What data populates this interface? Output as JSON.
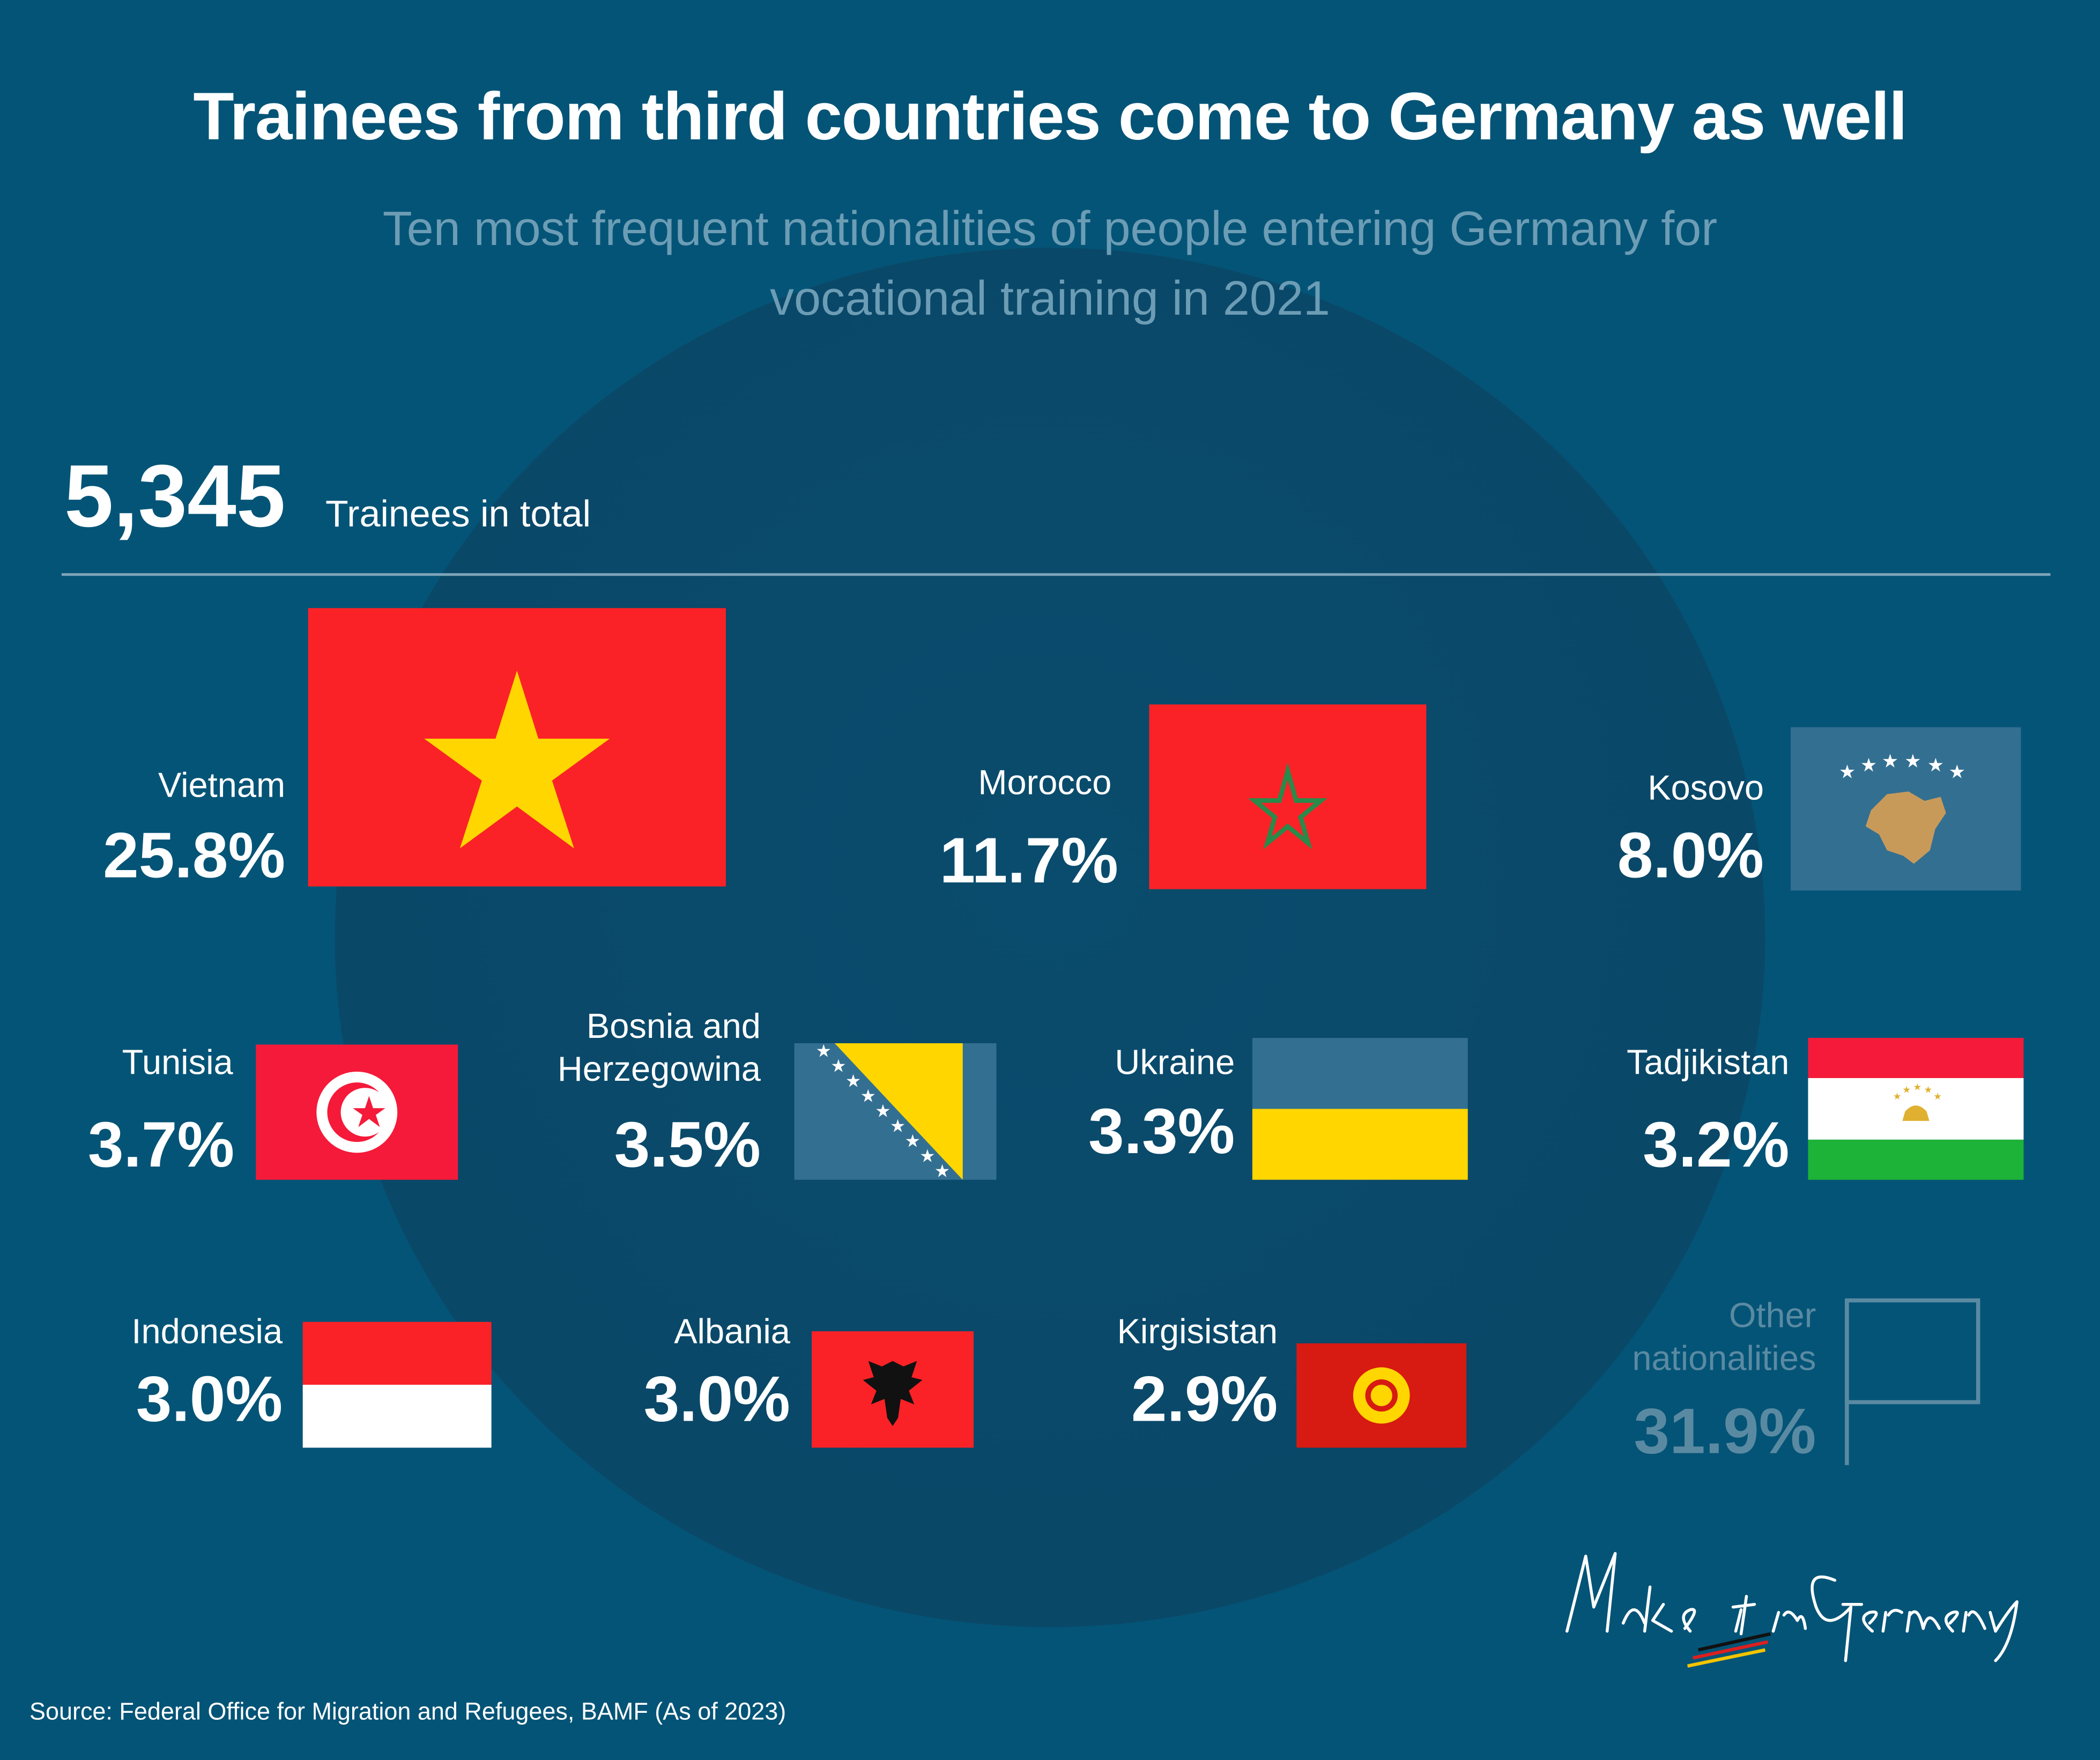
{
  "title": "Trainees from third countries come to Germany as well",
  "subtitle_line1": "Ten most frequent nationalities of people entering Germany for",
  "subtitle_line2": "vocational training in 2021",
  "total": {
    "value": "5,345",
    "label": "Trainees in total"
  },
  "source": "Source: Federal Office for Migration and Refugees, BAMF (As of 2023)",
  "logo_text": "Make it in Germany",
  "colors": {
    "background": "#045477",
    "subtitle": "#6c9db5",
    "muted": "#5a8aa2",
    "red": "#fa2227",
    "yellow": "#ffd600",
    "blue_flag": "#336f91",
    "green": "#1db338"
  },
  "chart_data": {
    "type": "proportional-area",
    "unit": "%",
    "total": 5345,
    "categories": [
      "Vietnam",
      "Morocco",
      "Kosovo",
      "Tunisia",
      "Bosnia and Herzegowina",
      "Ukraine",
      "Tadjikistan",
      "Indonesia",
      "Albania",
      "Kirgisistan",
      "Other nationalities"
    ],
    "values": [
      25.8,
      11.7,
      8.0,
      3.7,
      3.5,
      3.3,
      3.2,
      3.0,
      3.0,
      2.9,
      31.9
    ],
    "labels": [
      "25.8%",
      "11.7%",
      "8.0%",
      "3.7%",
      "3.5%",
      "3.3%",
      "3.2%",
      "3.0%",
      "3.0%",
      "2.9%",
      "31.9%"
    ],
    "display_names": [
      "Vietnam",
      "Morocco",
      "Kosovo",
      "Tunisia",
      "Bosnia and",
      "Herzegowina",
      "Ukraine",
      "Tadjikistan",
      "Indonesia",
      "Albania",
      "Kirgisistan",
      "Other",
      "nationalities"
    ],
    "icons": [
      "flag-vietnam",
      "flag-morocco",
      "flag-kosovo",
      "flag-tunisia",
      "flag-bosnia",
      "flag-ukraine",
      "flag-tajikistan",
      "flag-indonesia",
      "flag-albania",
      "flag-kyrgyzstan",
      "flag-outline"
    ]
  }
}
